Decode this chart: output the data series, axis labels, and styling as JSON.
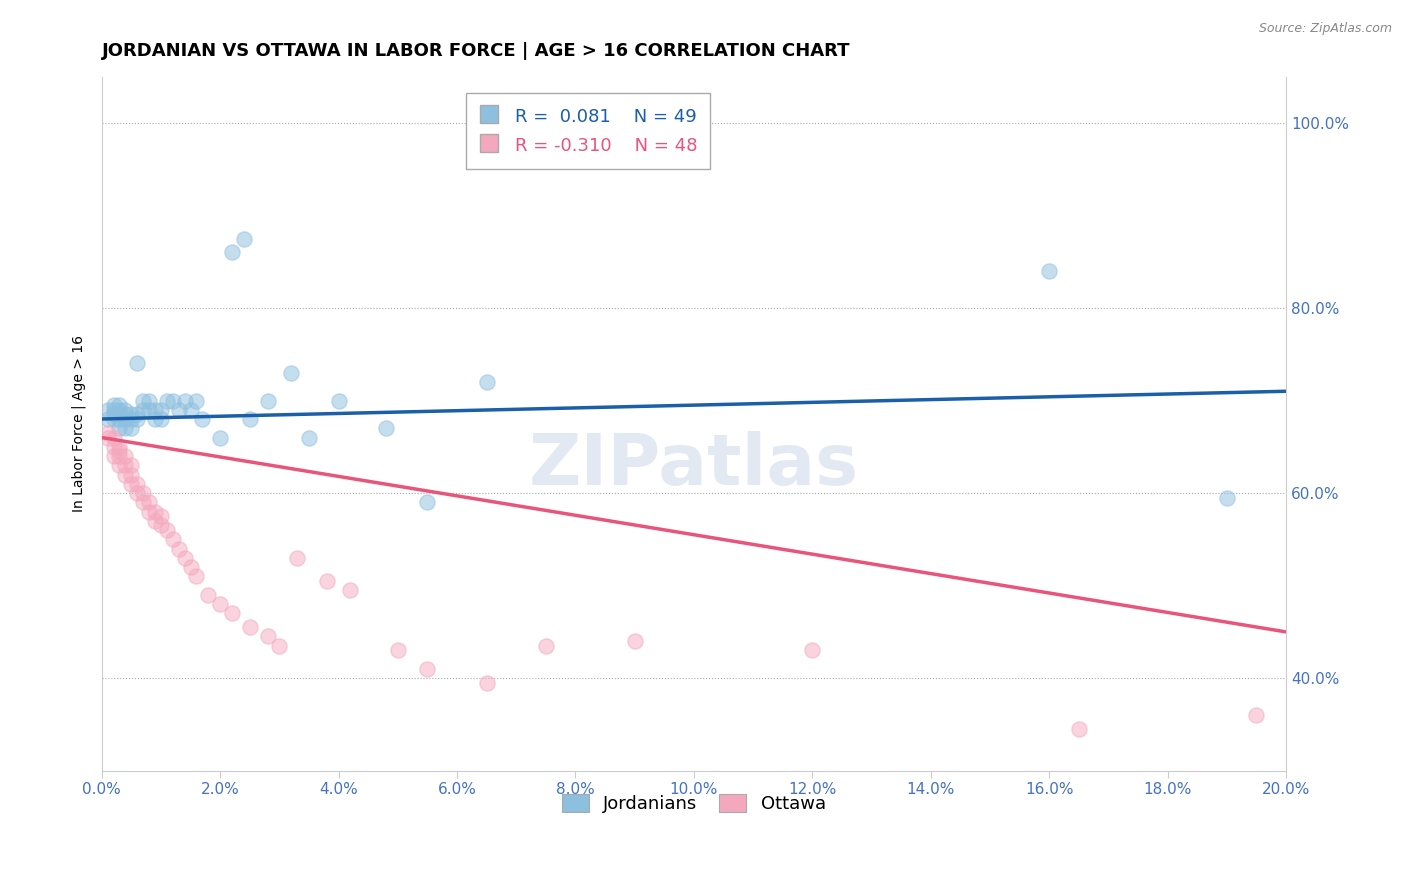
{
  "title": "JORDANIAN VS OTTAWA IN LABOR FORCE | AGE > 16 CORRELATION CHART",
  "source_text": "Source: ZipAtlas.com",
  "ylabel": "In Labor Force | Age > 16",
  "xlim": [
    0.0,
    0.2
  ],
  "ylim": [
    0.3,
    1.05
  ],
  "xticks": [
    0.0,
    0.02,
    0.04,
    0.06,
    0.08,
    0.1,
    0.12,
    0.14,
    0.16,
    0.18,
    0.2
  ],
  "yticks": [
    0.4,
    0.6,
    0.8,
    1.0
  ],
  "xticklabels": [
    "0.0%",
    "2.0%",
    "4.0%",
    "6.0%",
    "8.0%",
    "10.0%",
    "12.0%",
    "14.0%",
    "16.0%",
    "18.0%",
    "20.0%"
  ],
  "yticklabels": [
    "40.0%",
    "60.0%",
    "80.0%",
    "100.0%"
  ],
  "title_fontsize": 13,
  "axis_label_fontsize": 10,
  "tick_fontsize": 11,
  "blue_color": "#8dbfdf",
  "pink_color": "#f4a8be",
  "blue_line_color": "#1a5fa8",
  "pink_line_color": "#e8547a",
  "legend_r1": "R =  0.081",
  "legend_n1": "N = 49",
  "legend_r2": "R = -0.310",
  "legend_n2": "N = 48",
  "watermark": "ZIPatlas",
  "jordanians_x": [
    0.001,
    0.001,
    0.002,
    0.002,
    0.002,
    0.002,
    0.003,
    0.003,
    0.003,
    0.003,
    0.003,
    0.004,
    0.004,
    0.004,
    0.004,
    0.005,
    0.005,
    0.005,
    0.006,
    0.006,
    0.006,
    0.007,
    0.007,
    0.008,
    0.008,
    0.009,
    0.009,
    0.01,
    0.01,
    0.011,
    0.012,
    0.013,
    0.014,
    0.015,
    0.016,
    0.017,
    0.02,
    0.022,
    0.024,
    0.025,
    0.028,
    0.032,
    0.035,
    0.04,
    0.048,
    0.055,
    0.065,
    0.16,
    0.19
  ],
  "jordanians_y": [
    0.68,
    0.69,
    0.68,
    0.685,
    0.69,
    0.695,
    0.67,
    0.68,
    0.685,
    0.69,
    0.695,
    0.67,
    0.68,
    0.685,
    0.69,
    0.67,
    0.68,
    0.685,
    0.68,
    0.685,
    0.74,
    0.69,
    0.7,
    0.69,
    0.7,
    0.68,
    0.69,
    0.68,
    0.69,
    0.7,
    0.7,
    0.69,
    0.7,
    0.69,
    0.7,
    0.68,
    0.66,
    0.86,
    0.875,
    0.68,
    0.7,
    0.73,
    0.66,
    0.7,
    0.67,
    0.59,
    0.72,
    0.84,
    0.595
  ],
  "ottawa_x": [
    0.001,
    0.001,
    0.002,
    0.002,
    0.002,
    0.003,
    0.003,
    0.003,
    0.003,
    0.004,
    0.004,
    0.004,
    0.005,
    0.005,
    0.005,
    0.006,
    0.006,
    0.007,
    0.007,
    0.008,
    0.008,
    0.009,
    0.009,
    0.01,
    0.01,
    0.011,
    0.012,
    0.013,
    0.014,
    0.015,
    0.016,
    0.018,
    0.02,
    0.022,
    0.025,
    0.028,
    0.03,
    0.033,
    0.038,
    0.042,
    0.05,
    0.055,
    0.065,
    0.075,
    0.09,
    0.12,
    0.165,
    0.195
  ],
  "ottawa_y": [
    0.66,
    0.665,
    0.64,
    0.65,
    0.66,
    0.63,
    0.64,
    0.645,
    0.65,
    0.62,
    0.63,
    0.64,
    0.61,
    0.62,
    0.63,
    0.6,
    0.61,
    0.59,
    0.6,
    0.58,
    0.59,
    0.57,
    0.58,
    0.565,
    0.575,
    0.56,
    0.55,
    0.54,
    0.53,
    0.52,
    0.51,
    0.49,
    0.48,
    0.47,
    0.455,
    0.445,
    0.435,
    0.53,
    0.505,
    0.495,
    0.43,
    0.41,
    0.395,
    0.435,
    0.44,
    0.43,
    0.345,
    0.36
  ],
  "blue_trend_x0": 0.0,
  "blue_trend_y0": 0.68,
  "blue_trend_x1": 0.2,
  "blue_trend_y1": 0.71,
  "pink_trend_x0": 0.0,
  "pink_trend_y0": 0.66,
  "pink_trend_x1": 0.2,
  "pink_trend_y1": 0.45
}
